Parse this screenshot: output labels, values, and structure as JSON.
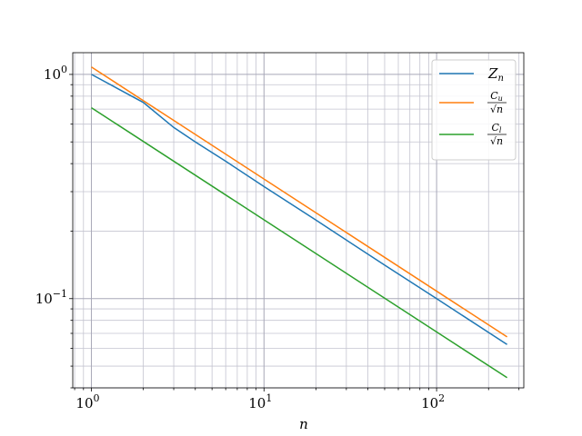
{
  "chart_data": {
    "type": "line",
    "xscale": "log",
    "yscale": "log",
    "xlabel": "n",
    "ylabel": "",
    "xlim": [
      0.78,
      320
    ],
    "ylim": [
      0.04,
      1.25
    ],
    "grid": true,
    "legend_position": "upper right",
    "x_ticks": [
      {
        "value": 1,
        "base": "10",
        "exp": "0"
      },
      {
        "value": 10,
        "base": "10",
        "exp": "1"
      },
      {
        "value": 100,
        "base": "10",
        "exp": "2"
      }
    ],
    "y_ticks": [
      {
        "value": 1,
        "base": "10",
        "exp": "0"
      },
      {
        "value": 0.1,
        "base": "10",
        "exp": "−1"
      }
    ],
    "series": [
      {
        "name": "Z_n",
        "legend": {
          "main": "Z",
          "sub": "n"
        },
        "color": "#1f77b4",
        "x": [
          1,
          2,
          3,
          4,
          6,
          10,
          20,
          50,
          100,
          256
        ],
        "y": [
          1.0,
          0.75,
          0.58,
          0.5,
          0.41,
          0.316,
          0.224,
          0.141,
          0.1,
          0.0625
        ]
      },
      {
        "name": "C_u/sqrt(n)",
        "legend": {
          "num": "C",
          "num_sub": "u",
          "den": "√n"
        },
        "color": "#ff7f0e",
        "x": [
          1,
          256
        ],
        "y": [
          1.08,
          0.0675
        ]
      },
      {
        "name": "C_l/sqrt(n)",
        "legend": {
          "num": "C",
          "num_sub": "l",
          "den": "√n"
        },
        "color": "#2ca02c",
        "x": [
          1,
          256
        ],
        "y": [
          0.71,
          0.0444
        ]
      }
    ]
  }
}
